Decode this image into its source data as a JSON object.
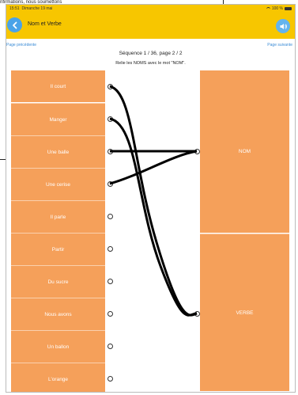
{
  "background": {
    "caption_prefix": "nfirmations, nous soumettons",
    "caption_red": ""
  },
  "status": {
    "time": "15:51",
    "date": "Dimanche 19 mai",
    "battery": "100 %"
  },
  "nav": {
    "title": "Nom et Verbe",
    "back_icon": "chevron-left-icon",
    "sound_icon": "speaker-icon"
  },
  "links": {
    "previous": "Page précédente",
    "next": "Page suivante"
  },
  "sequence": "Séquence 1 / 36, page 2 / 2",
  "instruction": "Relie les NOMS avec le mot \"NOM\".",
  "colors": {
    "accent": "#f7c600",
    "tile": "#f5a05a",
    "link": "#3a8bd6",
    "button": "#4aa3e8"
  },
  "left_items": [
    {
      "label": "Il court"
    },
    {
      "label": "Manger"
    },
    {
      "label": "Une balle"
    },
    {
      "label": "Une cerise"
    },
    {
      "label": "Il parle"
    },
    {
      "label": "Partir"
    },
    {
      "label": "Du sucre"
    },
    {
      "label": "Nous avons"
    },
    {
      "label": "Un ballon"
    },
    {
      "label": "L'orange"
    }
  ],
  "right_items": [
    {
      "label": "NOM"
    },
    {
      "label": "VERBE"
    }
  ],
  "connections": [
    {
      "from": 0,
      "to": 1
    },
    {
      "from": 1,
      "to": 1
    },
    {
      "from": 2,
      "to": 0
    },
    {
      "from": 3,
      "to": 0
    }
  ]
}
